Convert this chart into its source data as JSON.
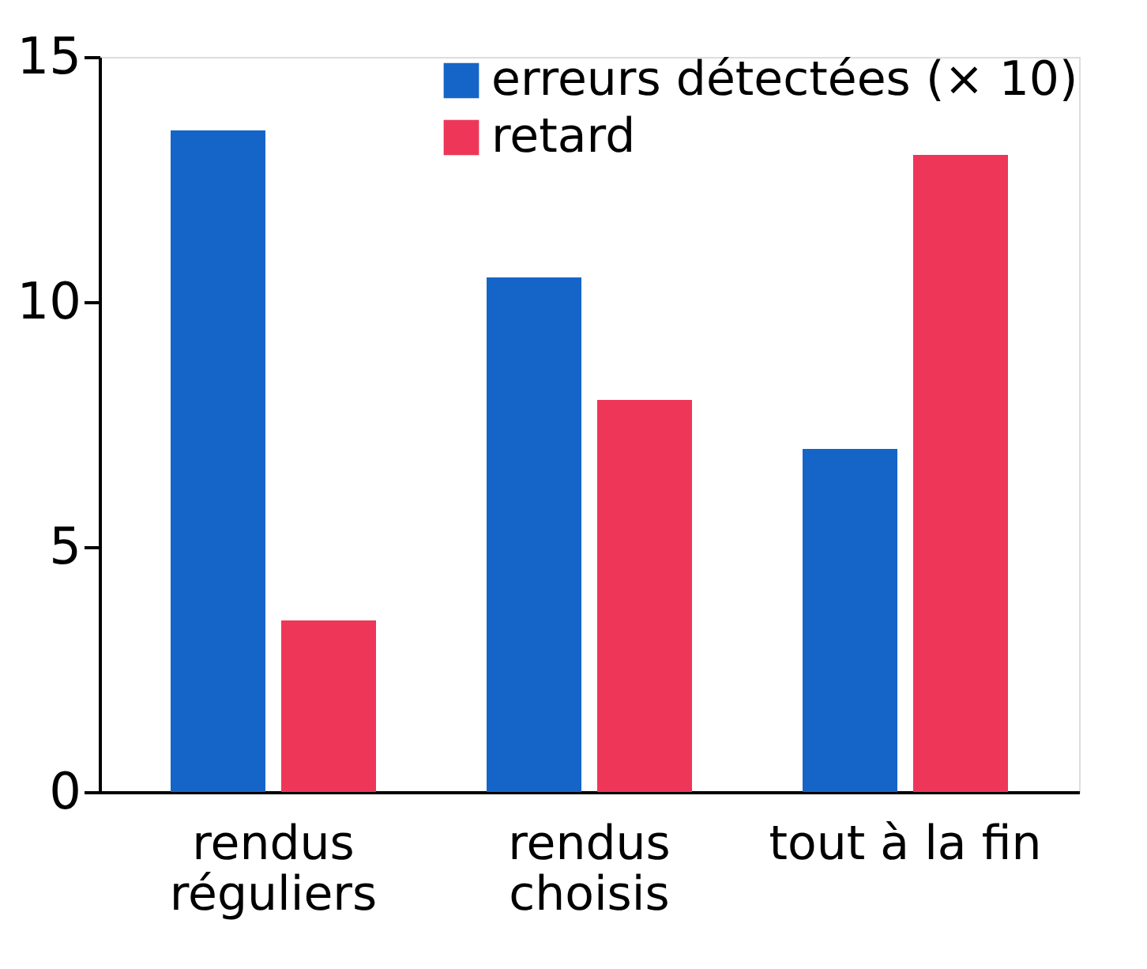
{
  "chart_data": {
    "type": "bar",
    "categories": [
      "rendus réguliers",
      "rendus choisis",
      "tout à la fin"
    ],
    "series": [
      {
        "name": "erreurs détectées (× 10)",
        "color": "#1565c8",
        "values": [
          13.5,
          10.5,
          7
        ]
      },
      {
        "name": "retard",
        "color": "#ee3658",
        "values": [
          3.5,
          8,
          13
        ]
      }
    ],
    "ylim": [
      0,
      15
    ],
    "yticks": [
      0,
      5,
      10,
      15
    ],
    "grid": false,
    "legend": "top right"
  }
}
